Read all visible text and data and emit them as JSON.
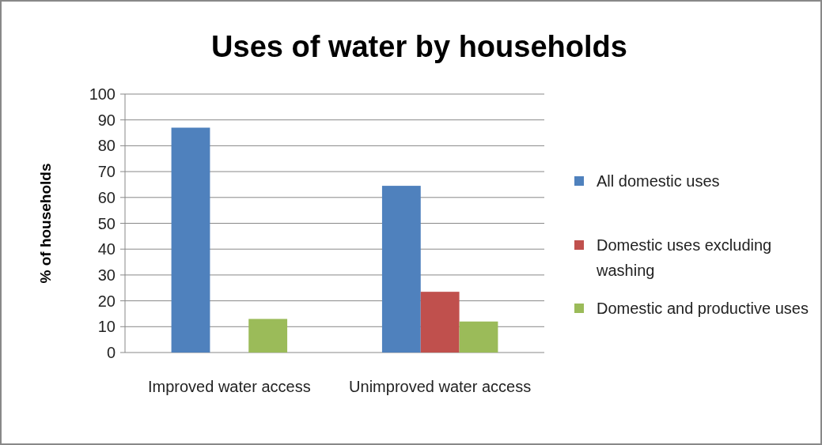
{
  "chart_data": {
    "type": "bar",
    "title": "Uses of water by households",
    "ylabel": "% of households",
    "categories": [
      "Improved water access",
      "Unimproved water access"
    ],
    "series": [
      {
        "name": "All domestic uses",
        "color": "#4f81bd",
        "values": [
          87,
          64.5
        ]
      },
      {
        "name": "Domestic uses excluding washing",
        "color": "#c0504d",
        "values": [
          0,
          23.5
        ]
      },
      {
        "name": "Domestic and productive uses",
        "color": "#9bbb59",
        "values": [
          13,
          12
        ]
      }
    ],
    "ylim": [
      0,
      100
    ],
    "yticks": [
      0,
      10,
      20,
      30,
      40,
      50,
      60,
      70,
      80,
      90,
      100
    ],
    "grid": "y",
    "legend": "right"
  }
}
